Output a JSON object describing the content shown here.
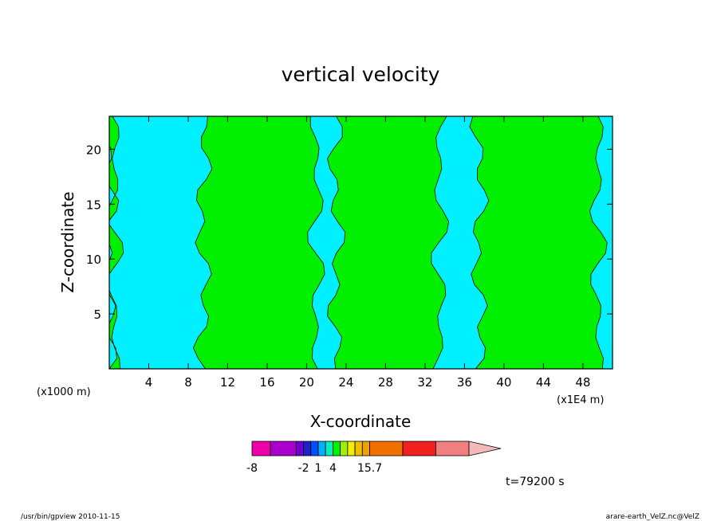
{
  "chart_data": {
    "type": "heatmap",
    "title": "vertical velocity",
    "xlabel": "X-coordinate",
    "ylabel": "Z-coordinate",
    "x_unit_label": "(x1000 m)",
    "x_scale_label": "(x1E4 m)",
    "xlim": [
      0,
      51
    ],
    "ylim": [
      0,
      23
    ],
    "x_ticks": [
      "4",
      "8",
      "12",
      "16",
      "20",
      "24",
      "28",
      "32",
      "36",
      "40",
      "44",
      "48"
    ],
    "x_tick_values": [
      4,
      8,
      12,
      16,
      20,
      24,
      28,
      32,
      36,
      40,
      44,
      48
    ],
    "y_ticks": [
      "5",
      "10",
      "15",
      "20"
    ],
    "y_tick_values": [
      5,
      10,
      15,
      20
    ],
    "time_label": "t=79200 s",
    "contour_levels_visible": [
      "cyan",
      "green"
    ],
    "colors": {
      "cyan": "#00f0ff",
      "green": "#00f000",
      "contour_line": "#000000"
    },
    "regions": [
      {
        "fill": "green",
        "x_range": [
          0,
          0.5
        ],
        "note": "left edge strip"
      },
      {
        "fill": "cyan",
        "x_range": [
          0.5,
          9.5
        ]
      },
      {
        "fill": "green",
        "x_range": [
          9.5,
          21
        ]
      },
      {
        "fill": "cyan",
        "x_range": [
          21,
          23
        ]
      },
      {
        "fill": "green",
        "x_range": [
          23,
          33.5
        ]
      },
      {
        "fill": "cyan",
        "x_range": [
          33.5,
          37.5
        ]
      },
      {
        "fill": "green",
        "x_range": [
          37.5,
          49.5
        ]
      },
      {
        "fill": "cyan",
        "x_range": [
          49.5,
          51
        ]
      }
    ]
  },
  "colorbar": {
    "labels": [
      "-8",
      "-2",
      "1",
      "4",
      "15.7"
    ],
    "label_positions": [
      0,
      3,
      5,
      7,
      12
    ],
    "swatches": [
      "#ee00aa",
      "#aa00cc",
      "#7000cc",
      "#2020d0",
      "#0050ff",
      "#00b0ff",
      "#00f0c0",
      "#00f000",
      "#a0f000",
      "#f0f000",
      "#f0c000",
      "#f0a000",
      "#f07000",
      "#f02020",
      "#f08080"
    ],
    "widths": [
      1,
      1.4,
      0.4,
      0.4,
      0.4,
      0.4,
      0.4,
      0.4,
      0.4,
      0.4,
      0.4,
      0.4,
      1.8,
      1.8,
      1.8
    ],
    "arrow_color": "#f5b8b8"
  },
  "footer": {
    "left": "/usr/bin/gpview   2010-11-15",
    "right": "arare-earth_VelZ.nc@VelZ"
  }
}
